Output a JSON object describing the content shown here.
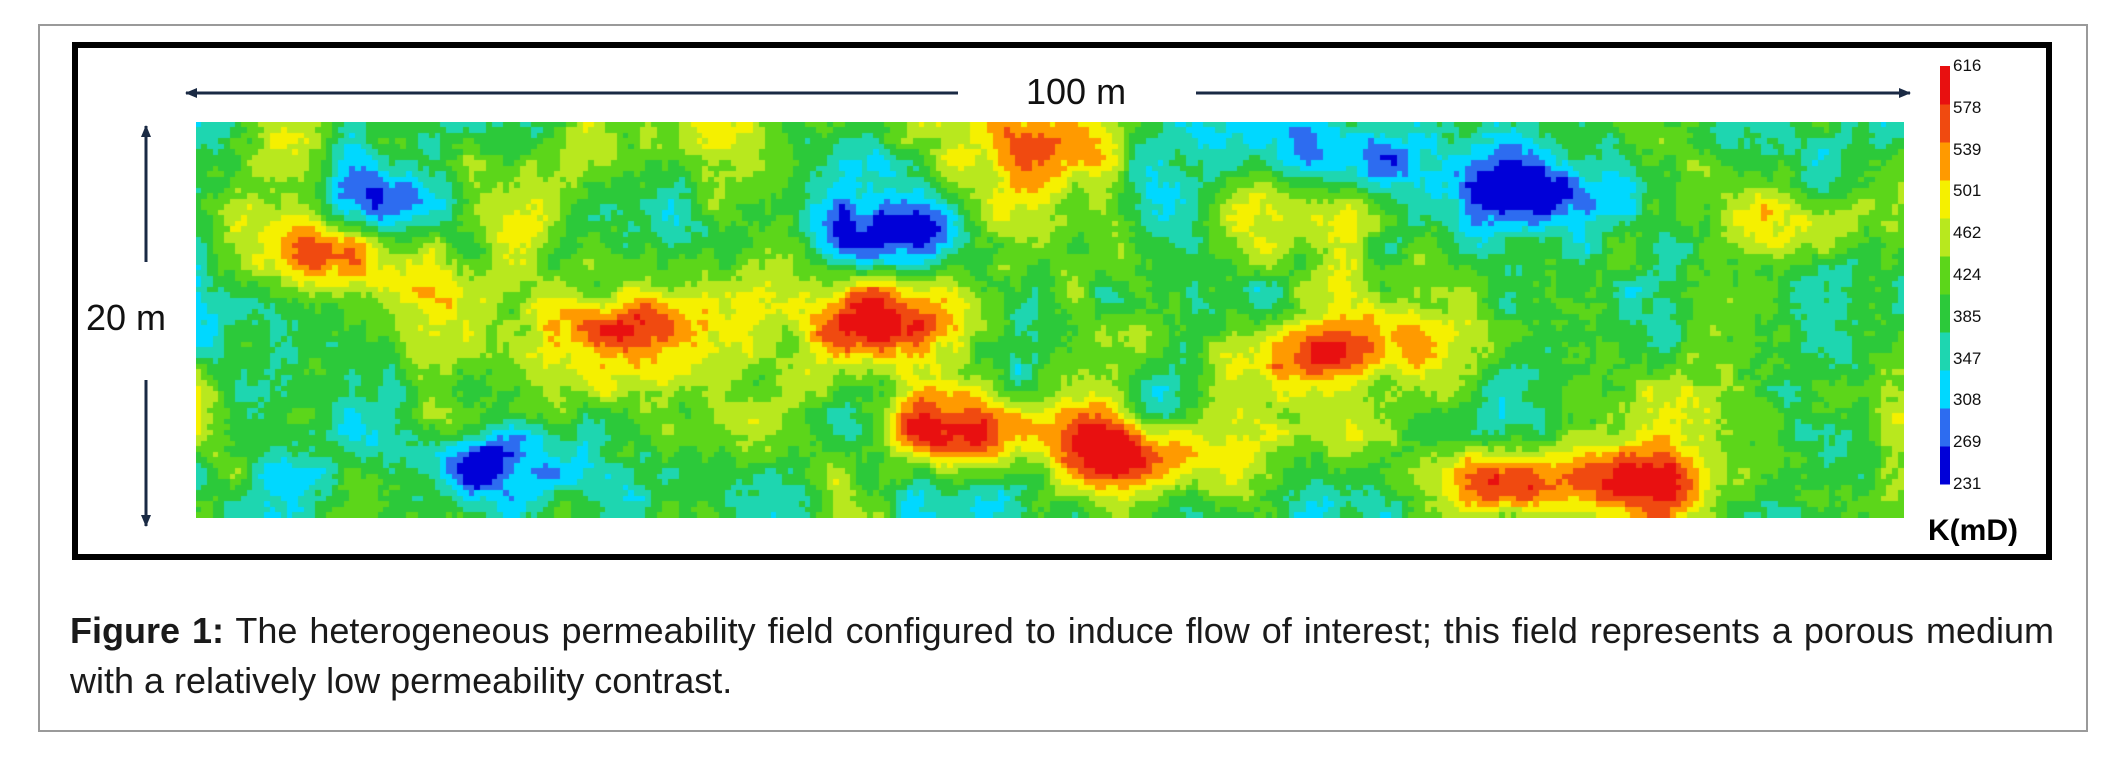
{
  "chart_data": {
    "type": "heatmap",
    "title": "",
    "x_extent_label": "100 m",
    "y_extent_label": "20 m",
    "colorbar": {
      "label": "K(mD)",
      "ticks": [
        "616",
        "578",
        "539",
        "501",
        "462",
        "424",
        "385",
        "347",
        "308",
        "269",
        "231"
      ],
      "min": 231,
      "max": 616,
      "colors": [
        "#0000d8",
        "#2d6cf0",
        "#00d8ff",
        "#1ed6b0",
        "#2cc93a",
        "#5cd61a",
        "#b8e81e",
        "#f5f000",
        "#ff9a00",
        "#f04a10",
        "#e81010"
      ]
    },
    "field": {
      "grid_cols": 300,
      "grid_rows": 72,
      "mean_mD": 410,
      "low_zones": [
        {
          "x": 0.17,
          "y": 0.86,
          "value": 240
        },
        {
          "x": 0.78,
          "y": 0.17,
          "value": 250
        },
        {
          "x": 0.67,
          "y": 0.09,
          "value": 275
        },
        {
          "x": 0.41,
          "y": 0.28,
          "value": 280
        },
        {
          "x": 0.1,
          "y": 0.21,
          "value": 290
        }
      ],
      "high_zones": [
        {
          "x": 0.46,
          "y": 0.78,
          "value": 612
        },
        {
          "x": 0.25,
          "y": 0.53,
          "value": 600
        },
        {
          "x": 0.55,
          "y": 0.85,
          "value": 590
        },
        {
          "x": 0.65,
          "y": 0.59,
          "value": 575
        },
        {
          "x": 0.84,
          "y": 0.91,
          "value": 585
        },
        {
          "x": 0.77,
          "y": 0.91,
          "value": 565
        },
        {
          "x": 0.41,
          "y": 0.49,
          "value": 560
        },
        {
          "x": 0.08,
          "y": 0.33,
          "value": 555
        },
        {
          "x": 0.5,
          "y": 0.08,
          "value": 548
        },
        {
          "x": 0.94,
          "y": 0.25,
          "value": 545
        }
      ]
    }
  },
  "caption": {
    "label": "Figure 1:",
    "text": " The heterogeneous permeability field configured to induce flow of interest; this field represents a porous medium with a relatively low permeability contrast."
  }
}
